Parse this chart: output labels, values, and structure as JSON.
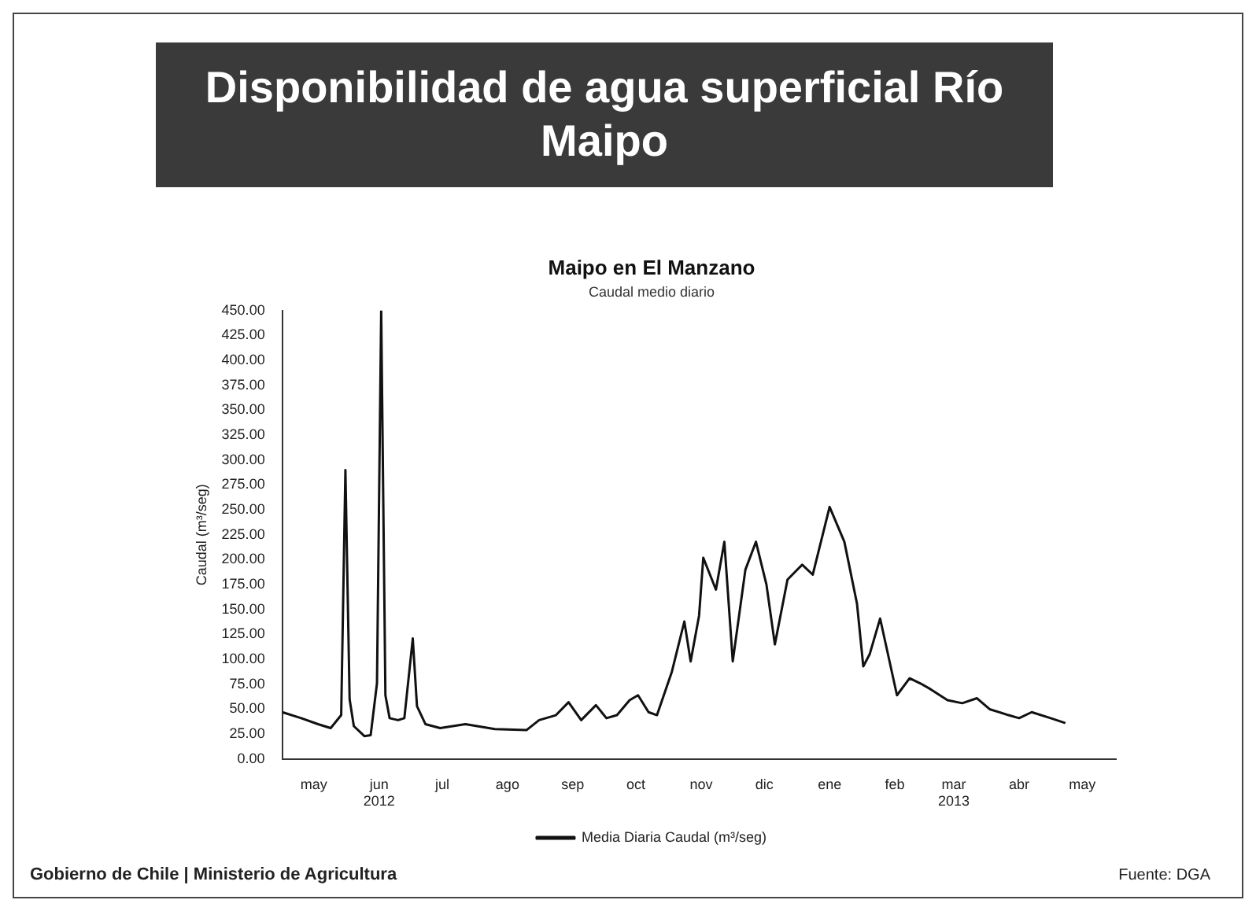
{
  "chart_data": {
    "type": "line",
    "title": "Disponibilidad de agua superficial Río Maipo",
    "subtitle": "Maipo en El Manzano",
    "ylabel": "Caudal (m³/seg)",
    "annotations": [
      "Caudal medio diario",
      "Gobierno de Chile | Ministerio de Agricultura",
      "Fuente: DGA"
    ],
    "x": [
      "2012-04-16",
      "2012-04-25",
      "2012-05-03",
      "2012-05-09",
      "2012-05-14",
      "2012-05-16",
      "2012-05-18",
      "2012-05-20",
      "2012-05-25",
      "2012-05-28",
      "2012-05-31",
      "2012-06-02",
      "2012-06-04",
      "2012-06-06",
      "2012-06-10",
      "2012-06-13",
      "2012-06-17",
      "2012-06-19",
      "2012-06-23",
      "2012-06-30",
      "2012-07-12",
      "2012-07-26",
      "2012-08-10",
      "2012-08-16",
      "2012-08-24",
      "2012-08-30",
      "2012-09-05",
      "2012-09-12",
      "2012-09-17",
      "2012-09-22",
      "2012-09-28",
      "2012-10-02",
      "2012-10-07",
      "2012-10-11",
      "2012-10-18",
      "2012-10-24",
      "2012-10-27",
      "2012-10-31",
      "2012-11-02",
      "2012-11-08",
      "2012-11-12",
      "2012-11-16",
      "2012-11-22",
      "2012-11-27",
      "2012-12-02",
      "2012-12-06",
      "2012-12-12",
      "2012-12-19",
      "2012-12-24",
      "2013-01-01",
      "2013-01-08",
      "2013-01-14",
      "2013-01-17",
      "2013-01-20",
      "2013-01-25",
      "2013-02-02",
      "2013-02-08",
      "2013-02-13",
      "2013-02-18",
      "2013-02-26",
      "2013-03-05",
      "2013-03-12",
      "2013-03-18",
      "2013-03-27",
      "2013-04-01",
      "2013-04-07",
      "2013-04-16",
      "2013-04-23"
    ],
    "series": [
      {
        "name": "Media Diaria Caudal (m³/seg)",
        "color": "#111111",
        "values": [
          47,
          41,
          35,
          31,
          44,
          290,
          60,
          33,
          23,
          24,
          76,
          450,
          64,
          41,
          39,
          41,
          121,
          53,
          35,
          31,
          35,
          30,
          29,
          39,
          44,
          57,
          39,
          54,
          41,
          44,
          59,
          64,
          47,
          44,
          87,
          138,
          98,
          144,
          202,
          170,
          218,
          98,
          190,
          218,
          175,
          115,
          180,
          195,
          185,
          253,
          218,
          156,
          93,
          105,
          141,
          64,
          81,
          76,
          70,
          59,
          56,
          61,
          50,
          44,
          41,
          47,
          41,
          36
        ]
      }
    ],
    "xlim": [
      "2012-04-16",
      "2013-05-17"
    ],
    "xticks": [
      {
        "value": "2012-05-01",
        "label": "may"
      },
      {
        "value": "2012-06-01",
        "label": "jun\n2012"
      },
      {
        "value": "2012-07-01",
        "label": "jul"
      },
      {
        "value": "2012-08-01",
        "label": "ago"
      },
      {
        "value": "2012-09-01",
        "label": "sep"
      },
      {
        "value": "2012-10-01",
        "label": "oct"
      },
      {
        "value": "2012-11-01",
        "label": "nov"
      },
      {
        "value": "2012-12-01",
        "label": "dic"
      },
      {
        "value": "2013-01-01",
        "label": "ene"
      },
      {
        "value": "2013-02-01",
        "label": "feb"
      },
      {
        "value": "2013-03-01",
        "label": "mar\n2013"
      },
      {
        "value": "2013-04-01",
        "label": "abr"
      },
      {
        "value": "2013-05-01",
        "label": "may"
      }
    ],
    "ylim": [
      0,
      450
    ],
    "yticks": [
      {
        "value": 0,
        "label": "0.00"
      },
      {
        "value": 25,
        "label": "25.00"
      },
      {
        "value": 50,
        "label": "50.00"
      },
      {
        "value": 75,
        "label": "75.00"
      },
      {
        "value": 100,
        "label": "100.00"
      },
      {
        "value": 125,
        "label": "125.00"
      },
      {
        "value": 150,
        "label": "150.00"
      },
      {
        "value": 175,
        "label": "175.00"
      },
      {
        "value": 200,
        "label": "200.00"
      },
      {
        "value": 225,
        "label": "225.00"
      },
      {
        "value": 250,
        "label": "250.00"
      },
      {
        "value": 275,
        "label": "275.00"
      },
      {
        "value": 300,
        "label": "300.00"
      },
      {
        "value": 325,
        "label": "325.00"
      },
      {
        "value": 350,
        "label": "350.00"
      },
      {
        "value": 375,
        "label": "375.00"
      },
      {
        "value": 400,
        "label": "400.00"
      },
      {
        "value": 425,
        "label": "425.00"
      },
      {
        "value": 450,
        "label": "450.00"
      }
    ],
    "grid": false,
    "legend": "bottom",
    "marker": "none",
    "line_style": "solid"
  }
}
